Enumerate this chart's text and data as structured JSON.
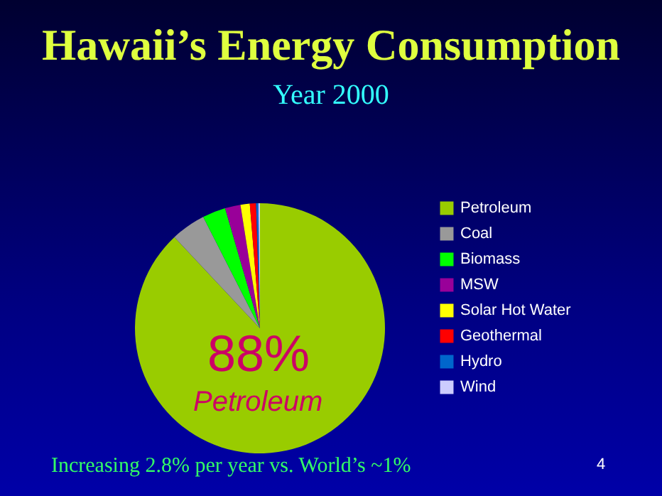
{
  "chart_data": {
    "type": "pie",
    "title": "Hawaii’s Energy Consumption",
    "subtitle": "Year 2000",
    "categories": [
      "Petroleum",
      "Coal",
      "Biomass",
      "MSW",
      "Solar Hot Water",
      "Geothermal",
      "Hydro",
      "Wind"
    ],
    "values": [
      88,
      4.5,
      3,
      2,
      1.2,
      0.8,
      0.3,
      0.2
    ],
    "colors": [
      "#99cc00",
      "#999999",
      "#00ff00",
      "#990099",
      "#ffff00",
      "#ff0000",
      "#0066cc",
      "#ccccff"
    ],
    "legend": "right",
    "annotations": [
      {
        "text": "88%"
      },
      {
        "text": "Petroleum"
      },
      {
        "text": "Increasing 2.8% per year vs. World’s ~1%"
      },
      {
        "text": "4"
      }
    ]
  }
}
